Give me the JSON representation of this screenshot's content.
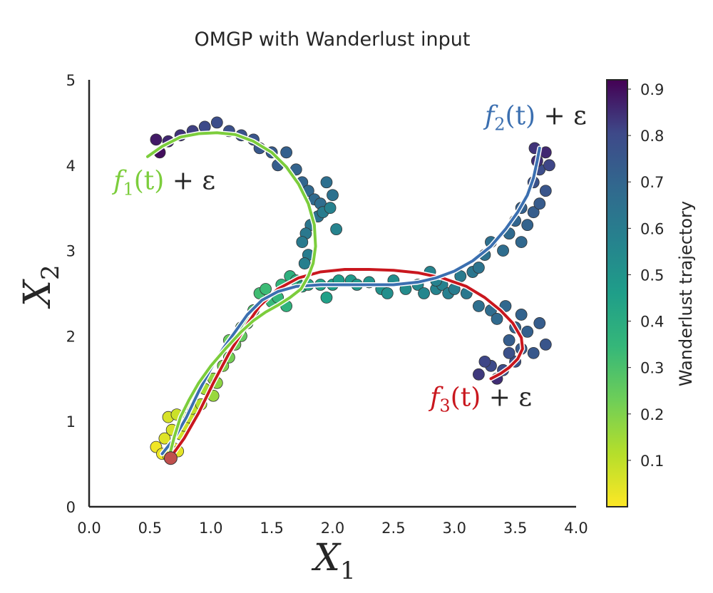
{
  "chart_data": {
    "type": "scatter",
    "title": "OMGP with Wanderlust input",
    "xlabel": "X",
    "xlabel_sub": "1",
    "ylabel": "X",
    "ylabel_sub": "2",
    "xlim": [
      0.0,
      4.0
    ],
    "ylim": [
      0,
      5
    ],
    "xticks": [
      "0.0",
      "0.5",
      "1.0",
      "1.5",
      "2.0",
      "2.5",
      "3.0",
      "3.5",
      "4.0"
    ],
    "yticks": [
      "0",
      "1",
      "2",
      "3",
      "4",
      "5"
    ],
    "grid": false,
    "colorbar": {
      "label": "Wanderlust trajectory",
      "colormap": "viridis",
      "range": [
        0.0,
        0.92
      ],
      "ticks": [
        "0.1",
        "0.2",
        "0.3",
        "0.4",
        "0.5",
        "0.6",
        "0.7",
        "0.8",
        "0.9"
      ]
    },
    "points": [
      [
        0.55,
        0.7,
        0.02
      ],
      [
        0.6,
        0.62,
        0.03
      ],
      [
        0.65,
        0.6,
        0.02
      ],
      [
        0.7,
        0.68,
        0.03
      ],
      [
        0.73,
        0.65,
        0.04
      ],
      [
        0.62,
        0.8,
        0.05
      ],
      [
        0.68,
        0.9,
        0.06
      ],
      [
        0.75,
        0.85,
        0.07
      ],
      [
        0.78,
        0.95,
        0.08
      ],
      [
        0.82,
        1.05,
        0.09
      ],
      [
        0.65,
        1.05,
        0.06
      ],
      [
        0.72,
        1.08,
        0.08
      ],
      [
        0.85,
        1.15,
        0.1
      ],
      [
        0.92,
        1.2,
        0.12
      ],
      [
        0.95,
        1.38,
        0.14
      ],
      [
        1.02,
        1.3,
        0.16
      ],
      [
        1.02,
        1.5,
        0.17
      ],
      [
        1.05,
        1.45,
        0.18
      ],
      [
        1.1,
        1.65,
        0.2
      ],
      [
        1.15,
        1.75,
        0.22
      ],
      [
        1.2,
        1.9,
        0.23
      ],
      [
        1.15,
        1.95,
        0.24
      ],
      [
        1.25,
        2.0,
        0.25
      ],
      [
        1.25,
        2.1,
        0.27
      ],
      [
        1.3,
        2.15,
        0.28
      ],
      [
        1.35,
        2.3,
        0.3
      ],
      [
        1.4,
        2.5,
        0.32
      ],
      [
        1.45,
        2.55,
        0.33
      ],
      [
        1.5,
        2.4,
        0.34
      ],
      [
        1.55,
        2.45,
        0.35
      ],
      [
        1.58,
        2.6,
        0.36
      ],
      [
        1.62,
        2.35,
        0.37
      ],
      [
        1.65,
        2.7,
        0.38
      ],
      [
        1.7,
        2.65,
        0.4
      ],
      [
        1.75,
        2.58,
        0.42
      ],
      [
        1.8,
        2.6,
        0.43
      ],
      [
        1.9,
        2.6,
        0.44
      ],
      [
        1.95,
        2.45,
        0.45
      ],
      [
        2.0,
        2.6,
        0.46
      ],
      [
        2.05,
        2.65,
        0.47
      ],
      [
        2.15,
        2.65,
        0.48
      ],
      [
        2.2,
        2.6,
        0.49
      ],
      [
        2.3,
        2.63,
        0.5
      ],
      [
        2.4,
        2.55,
        0.51
      ],
      [
        2.45,
        2.5,
        0.52
      ],
      [
        2.5,
        2.65,
        0.53
      ],
      [
        2.6,
        2.55,
        0.54
      ],
      [
        2.7,
        2.6,
        0.55
      ],
      [
        2.75,
        2.5,
        0.56
      ],
      [
        2.85,
        2.55,
        0.57
      ],
      [
        2.9,
        2.6,
        0.58
      ],
      [
        2.95,
        2.5,
        0.59
      ],
      [
        3.0,
        2.55,
        0.6
      ],
      [
        2.8,
        2.75,
        0.57
      ],
      [
        2.85,
        2.65,
        0.58
      ],
      [
        3.05,
        2.7,
        0.61
      ],
      [
        3.1,
        2.5,
        0.62
      ],
      [
        3.15,
        2.75,
        0.63
      ],
      [
        3.2,
        2.8,
        0.64
      ],
      [
        3.25,
        2.95,
        0.65
      ],
      [
        3.3,
        3.1,
        0.66
      ],
      [
        3.4,
        3.0,
        0.67
      ],
      [
        3.45,
        3.2,
        0.68
      ],
      [
        3.55,
        3.1,
        0.69
      ],
      [
        3.5,
        3.35,
        0.7
      ],
      [
        3.6,
        3.3,
        0.71
      ],
      [
        3.55,
        3.5,
        0.72
      ],
      [
        3.65,
        3.45,
        0.73
      ],
      [
        3.7,
        3.55,
        0.74
      ],
      [
        3.75,
        3.7,
        0.76
      ],
      [
        3.65,
        3.8,
        0.77
      ],
      [
        3.7,
        3.95,
        0.79
      ],
      [
        3.78,
        4.0,
        0.81
      ],
      [
        3.66,
        4.2,
        0.84
      ],
      [
        3.75,
        4.15,
        0.86
      ],
      [
        3.68,
        4.05,
        0.85
      ],
      [
        3.2,
        2.35,
        0.66
      ],
      [
        3.3,
        2.3,
        0.67
      ],
      [
        3.35,
        2.2,
        0.68
      ],
      [
        3.42,
        2.35,
        0.69
      ],
      [
        3.5,
        2.1,
        0.7
      ],
      [
        3.55,
        2.25,
        0.71
      ],
      [
        3.6,
        2.05,
        0.72
      ],
      [
        3.45,
        1.95,
        0.73
      ],
      [
        3.55,
        1.85,
        0.74
      ],
      [
        3.65,
        1.8,
        0.75
      ],
      [
        3.7,
        2.15,
        0.73
      ],
      [
        3.75,
        1.9,
        0.76
      ],
      [
        3.5,
        1.7,
        0.77
      ],
      [
        3.4,
        1.6,
        0.79
      ],
      [
        3.3,
        1.65,
        0.8
      ],
      [
        3.25,
        1.7,
        0.81
      ],
      [
        3.2,
        1.55,
        0.83
      ],
      [
        3.35,
        1.5,
        0.85
      ],
      [
        3.45,
        1.8,
        0.78
      ],
      [
        0.55,
        4.3,
        0.88
      ],
      [
        0.58,
        4.15,
        0.9
      ],
      [
        0.65,
        4.28,
        0.86
      ],
      [
        0.75,
        4.35,
        0.84
      ],
      [
        0.85,
        4.4,
        0.82
      ],
      [
        0.95,
        4.45,
        0.8
      ],
      [
        1.05,
        4.5,
        0.79
      ],
      [
        1.15,
        4.4,
        0.78
      ],
      [
        1.25,
        4.35,
        0.77
      ],
      [
        1.35,
        4.3,
        0.76
      ],
      [
        1.4,
        4.2,
        0.75
      ],
      [
        1.5,
        4.15,
        0.74
      ],
      [
        1.55,
        4.0,
        0.73
      ],
      [
        1.62,
        4.15,
        0.72
      ],
      [
        1.7,
        3.95,
        0.71
      ],
      [
        1.75,
        3.8,
        0.7
      ],
      [
        1.8,
        3.7,
        0.69
      ],
      [
        1.85,
        3.6,
        0.68
      ],
      [
        1.9,
        3.55,
        0.67
      ],
      [
        1.95,
        3.8,
        0.66
      ],
      [
        2.0,
        3.65,
        0.65
      ],
      [
        1.88,
        3.4,
        0.64
      ],
      [
        1.82,
        3.3,
        0.63
      ],
      [
        1.78,
        3.2,
        0.62
      ],
      [
        1.75,
        3.1,
        0.61
      ],
      [
        1.8,
        2.95,
        0.6
      ],
      [
        1.77,
        2.85,
        0.59
      ],
      [
        1.92,
        3.45,
        0.6
      ],
      [
        1.98,
        3.5,
        0.58
      ],
      [
        2.03,
        3.25,
        0.57
      ]
    ],
    "series": [
      {
        "name": "f1(t) + ε",
        "color": "#7ccd3c",
        "x": [
          0.48,
          0.6,
          0.75,
          0.9,
          1.05,
          1.2,
          1.35,
          1.5,
          1.62,
          1.72,
          1.8,
          1.85,
          1.86,
          1.84,
          1.8,
          1.74,
          1.65,
          1.55,
          1.45,
          1.35,
          1.25,
          1.12,
          1.0,
          0.9,
          0.82,
          0.75,
          0.7,
          0.66
        ],
        "y": [
          4.1,
          4.22,
          4.33,
          4.37,
          4.38,
          4.36,
          4.28,
          4.15,
          3.98,
          3.78,
          3.55,
          3.3,
          3.05,
          2.85,
          2.7,
          2.55,
          2.45,
          2.36,
          2.28,
          2.18,
          2.05,
          1.85,
          1.65,
          1.45,
          1.25,
          1.05,
          0.82,
          0.6
        ]
      },
      {
        "name": "f2(t) + ε",
        "color": "#3b6fb0",
        "x": [
          0.6,
          0.7,
          0.8,
          0.9,
          1.0,
          1.1,
          1.2,
          1.3,
          1.42,
          1.55,
          1.7,
          1.9,
          2.1,
          2.3,
          2.5,
          2.7,
          2.85,
          3.0,
          3.15,
          3.3,
          3.42,
          3.52,
          3.6,
          3.65,
          3.68,
          3.7
        ],
        "y": [
          0.62,
          0.8,
          1.05,
          1.35,
          1.62,
          1.85,
          2.05,
          2.25,
          2.42,
          2.52,
          2.58,
          2.6,
          2.6,
          2.6,
          2.6,
          2.63,
          2.68,
          2.76,
          2.88,
          3.05,
          3.25,
          3.45,
          3.65,
          3.85,
          4.05,
          4.2
        ]
      },
      {
        "name": "f3(t) + ε",
        "color": "#c9171e",
        "x": [
          0.68,
          0.78,
          0.9,
          1.02,
          1.15,
          1.28,
          1.4,
          1.55,
          1.72,
          1.9,
          2.1,
          2.3,
          2.5,
          2.7,
          2.9,
          3.1,
          3.25,
          3.38,
          3.48,
          3.55,
          3.56,
          3.52,
          3.45,
          3.38,
          3.3
        ],
        "y": [
          0.6,
          0.8,
          1.1,
          1.45,
          1.8,
          2.1,
          2.35,
          2.55,
          2.68,
          2.75,
          2.78,
          2.78,
          2.77,
          2.74,
          2.68,
          2.58,
          2.45,
          2.3,
          2.15,
          1.98,
          1.85,
          1.73,
          1.63,
          1.56,
          1.5
        ]
      }
    ],
    "series_labels": [
      {
        "f": "f",
        "sub": "1",
        "rest": "(t)",
        "tail": " + ε",
        "color": "#7ccd3c",
        "anchor_x": 0.2,
        "anchor_y": 3.72
      },
      {
        "f": "f",
        "sub": "2",
        "rest": "(t)",
        "tail": " + ε",
        "color": "#3b6fb0",
        "anchor_x": 3.25,
        "anchor_y": 4.48
      },
      {
        "f": "f",
        "sub": "3",
        "rest": "(t)",
        "tail": " + ε",
        "color": "#c9171e",
        "anchor_x": 2.8,
        "anchor_y": 1.18
      }
    ],
    "start_point": {
      "x": 0.67,
      "y": 0.57,
      "color": "#c0504d"
    }
  }
}
